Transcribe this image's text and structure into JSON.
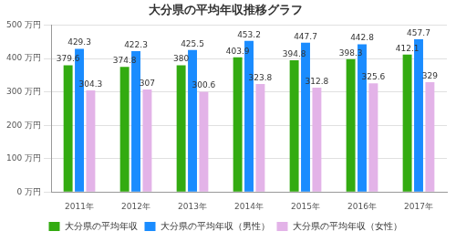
{
  "chart_data": {
    "type": "bar",
    "title": "大分県の平均年収推移グラフ",
    "categories": [
      "2011年",
      "2012年",
      "2013年",
      "2014年",
      "2015年",
      "2016年",
      "2017年"
    ],
    "series": [
      {
        "name": "大分県の平均年収",
        "color": "#33ab11",
        "values": [
          379.6,
          374.8,
          380,
          403.9,
          394.8,
          398.3,
          412.1
        ]
      },
      {
        "name": "大分県の平均年収（男性）",
        "color": "#1a8cff",
        "values": [
          429.3,
          422.3,
          425.5,
          453.2,
          447.7,
          442.8,
          457.7
        ]
      },
      {
        "name": "大分県の平均年収（女性）",
        "color": "#e3b3e8",
        "values": [
          304.3,
          307,
          300.6,
          323.8,
          312.8,
          325.6,
          329
        ]
      }
    ],
    "ylim": [
      0,
      500
    ],
    "yticks": [
      {
        "value": 0,
        "label": "0 万円"
      },
      {
        "value": 100,
        "label": "100 万円"
      },
      {
        "value": 200,
        "label": "200 万円"
      },
      {
        "value": 300,
        "label": "300 万円"
      },
      {
        "value": 400,
        "label": "400 万円"
      },
      {
        "value": 500,
        "label": "500 万円"
      }
    ],
    "grid": true,
    "legend": "bottom",
    "data_labels": true
  }
}
